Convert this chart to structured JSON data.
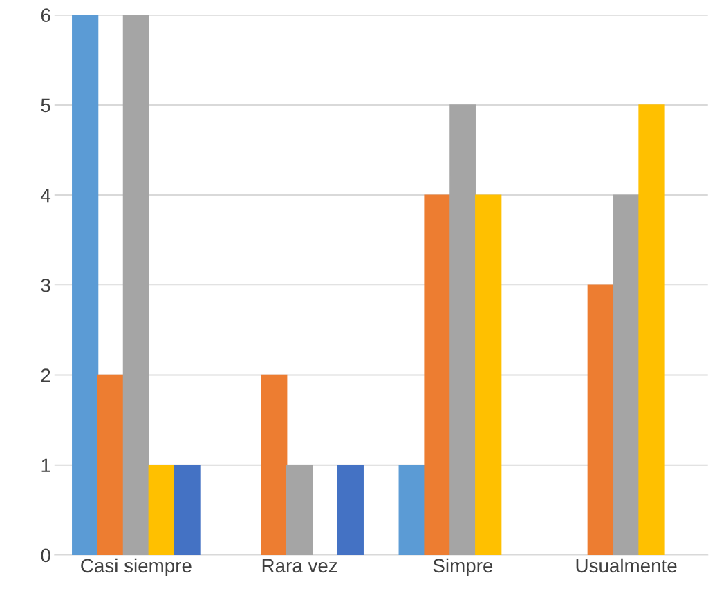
{
  "chart_data": {
    "type": "bar",
    "categories": [
      "Casi siempre",
      "Rara vez",
      "Simpre",
      "Usualmente"
    ],
    "series": [
      {
        "color": "#5b9bd5",
        "values": [
          6,
          null,
          1,
          null
        ]
      },
      {
        "color": "#ed7d31",
        "values": [
          2,
          2,
          4,
          3
        ]
      },
      {
        "color": "#a5a5a5",
        "values": [
          6,
          1,
          5,
          4
        ]
      },
      {
        "color": "#ffc000",
        "values": [
          1,
          null,
          4,
          5
        ]
      },
      {
        "color": "#4472c4",
        "values": [
          1,
          1,
          null,
          null
        ]
      }
    ],
    "ylim": [
      0,
      6
    ],
    "yticks": [
      0,
      1,
      2,
      3,
      4,
      5,
      6
    ],
    "grid": "y"
  }
}
